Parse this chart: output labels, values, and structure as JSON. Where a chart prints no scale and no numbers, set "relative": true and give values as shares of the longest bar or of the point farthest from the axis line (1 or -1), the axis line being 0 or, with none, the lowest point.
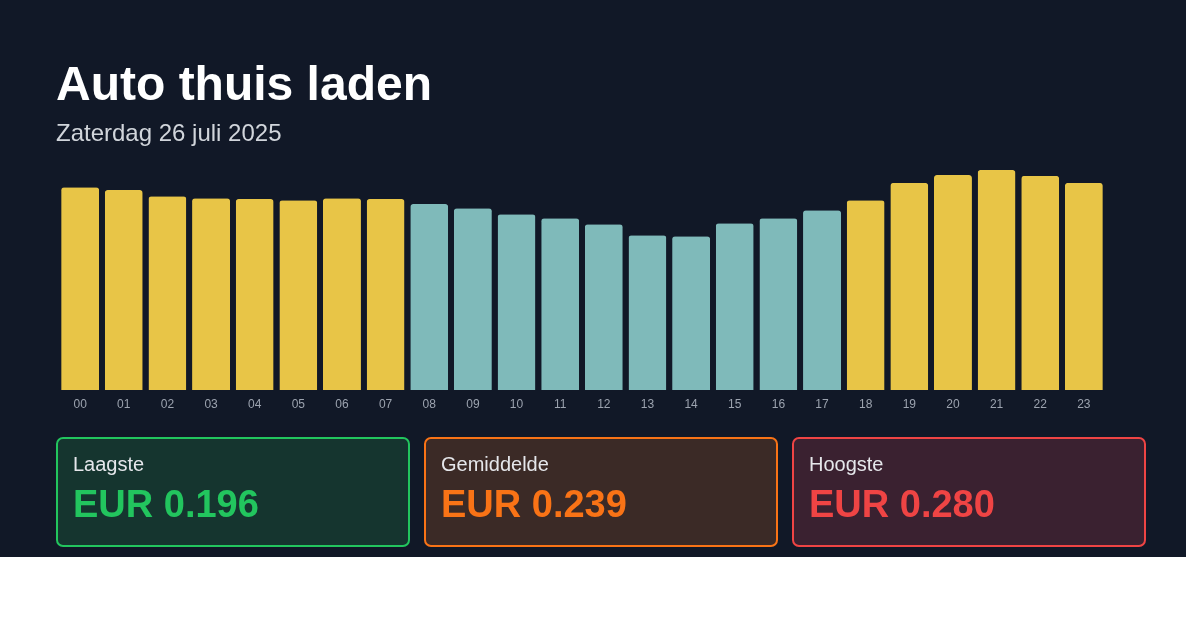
{
  "chart_data": {
    "type": "bar",
    "title": "Auto thuis laden",
    "subtitle": "Zaterdag 26 juli 2025",
    "relative": true,
    "categories": [
      "00",
      "01",
      "02",
      "03",
      "04",
      "05",
      "06",
      "07",
      "08",
      "09",
      "10",
      "11",
      "12",
      "13",
      "14",
      "15",
      "16",
      "17",
      "18",
      "19",
      "20",
      "21",
      "22",
      "23"
    ],
    "values": [
      0.922,
      0.909,
      0.881,
      0.872,
      0.868,
      0.863,
      0.872,
      0.868,
      0.845,
      0.826,
      0.799,
      0.781,
      0.753,
      0.703,
      0.699,
      0.758,
      0.781,
      0.817,
      0.863,
      0.941,
      0.977,
      1,
      0.973,
      0.941
    ],
    "colors": [
      "#e8c547",
      "#e8c547",
      "#e8c547",
      "#e8c547",
      "#e8c547",
      "#e8c547",
      "#e8c547",
      "#e8c547",
      "#7fbaba",
      "#7fbaba",
      "#7fbaba",
      "#7fbaba",
      "#7fbaba",
      "#7fbaba",
      "#7fbaba",
      "#7fbaba",
      "#7fbaba",
      "#7fbaba",
      "#e8c547",
      "#e8c547",
      "#e8c547",
      "#e8c547",
      "#e8c547",
      "#e8c547"
    ],
    "grid": false,
    "annotations": [
      "Laagste",
      "EUR 0.196",
      "Gemiddelde",
      "EUR 0.239",
      "Hoogste",
      "EUR 0.280"
    ]
  }
}
